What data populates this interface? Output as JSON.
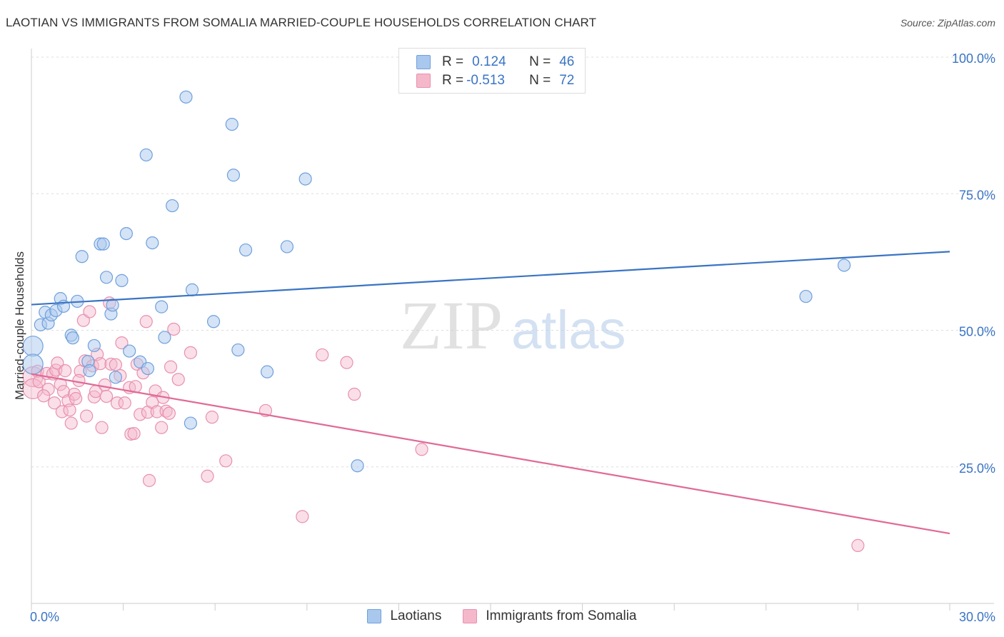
{
  "title": "LAOTIAN VS IMMIGRANTS FROM SOMALIA MARRIED-COUPLE HOUSEHOLDS CORRELATION CHART",
  "source": "Source: ZipAtlas.com",
  "watermark": {
    "zip": "ZIP",
    "atlas": "atlas"
  },
  "legend": {
    "row1": {
      "r_label": "R =",
      "r_value": "0.124",
      "n_label": "N =",
      "n_value": "46"
    },
    "row2": {
      "r_label": "R =",
      "r_value": "-0.513",
      "n_label": "N =",
      "n_value": "72"
    }
  },
  "colors": {
    "blue_fill": "#a9c8ee",
    "blue_stroke": "#6fa0dc",
    "blue_line": "#3a74c4",
    "pink_fill": "#f5b8cb",
    "pink_stroke": "#e890ae",
    "pink_line": "#e06a96",
    "axis_text": "#3a74c4",
    "grid": "#dddddd"
  },
  "chart_data": {
    "type": "scatter",
    "title": "LAOTIAN VS IMMIGRANTS FROM SOMALIA MARRIED-COUPLE HOUSEHOLDS CORRELATION CHART",
    "xlabel": "",
    "ylabel": "Married-couple Households",
    "xlim": [
      0,
      30
    ],
    "ylim": [
      0,
      105
    ],
    "x_tick_labels": [
      "0.0%",
      "30.0%"
    ],
    "y_ticks": [
      25,
      50,
      75,
      100
    ],
    "y_tick_labels": [
      "25.0%",
      "50.0%",
      "75.0%",
      "100.0%"
    ],
    "grid": true,
    "series": [
      {
        "name": "Laotians",
        "r": 0.124,
        "n": 46,
        "trend": {
          "x0": 0,
          "y0": 54.7,
          "x1": 30,
          "y1": 64.4
        },
        "points": [
          [
            0.05,
            47.1,
            "big"
          ],
          [
            0.05,
            43.8,
            "big"
          ],
          [
            0.3,
            51.0
          ],
          [
            0.45,
            53.3
          ],
          [
            0.55,
            51.3
          ],
          [
            0.65,
            52.8
          ],
          [
            0.8,
            53.6
          ],
          [
            0.95,
            55.8
          ],
          [
            1.05,
            54.4
          ],
          [
            1.3,
            49.1
          ],
          [
            1.35,
            48.6
          ],
          [
            1.5,
            55.3
          ],
          [
            1.65,
            63.5
          ],
          [
            1.85,
            44.3
          ],
          [
            1.9,
            42.6
          ],
          [
            2.05,
            47.2
          ],
          [
            2.25,
            65.8
          ],
          [
            2.35,
            65.8
          ],
          [
            2.45,
            59.7
          ],
          [
            2.6,
            53.0
          ],
          [
            2.65,
            54.6
          ],
          [
            2.75,
            41.4
          ],
          [
            2.95,
            59.1
          ],
          [
            3.1,
            67.7
          ],
          [
            3.2,
            46.2
          ],
          [
            3.55,
            44.2
          ],
          [
            3.75,
            82.1
          ],
          [
            3.8,
            43.0
          ],
          [
            3.95,
            66.0
          ],
          [
            4.25,
            54.3
          ],
          [
            4.35,
            48.7
          ],
          [
            4.6,
            72.8
          ],
          [
            5.05,
            92.7
          ],
          [
            5.2,
            33.0
          ],
          [
            5.25,
            57.4
          ],
          [
            5.95,
            51.6
          ],
          [
            6.55,
            87.7
          ],
          [
            6.6,
            78.4
          ],
          [
            6.75,
            46.4
          ],
          [
            7.0,
            64.7
          ],
          [
            7.7,
            42.4
          ],
          [
            8.35,
            65.3
          ],
          [
            8.95,
            77.7
          ],
          [
            10.65,
            25.2
          ],
          [
            25.3,
            56.2
          ],
          [
            26.55,
            61.9
          ]
        ]
      },
      {
        "name": "Immigrants from Somalia",
        "r": -0.513,
        "n": 72,
        "trend": {
          "x0": 0,
          "y0": 42.0,
          "x1": 30,
          "y1": 12.8
        },
        "points": [
          [
            0.05,
            41.5,
            "big"
          ],
          [
            0.05,
            39.3,
            "big"
          ],
          [
            0.2,
            42.5
          ],
          [
            0.25,
            40.6
          ],
          [
            0.5,
            42.1
          ],
          [
            0.55,
            39.2
          ],
          [
            0.7,
            42.0
          ],
          [
            0.75,
            36.7
          ],
          [
            0.8,
            42.7
          ],
          [
            0.85,
            44.0
          ],
          [
            0.95,
            40.1
          ],
          [
            1.0,
            35.1
          ],
          [
            1.05,
            38.8
          ],
          [
            1.1,
            42.6
          ],
          [
            1.2,
            37.1
          ],
          [
            1.25,
            35.4
          ],
          [
            1.3,
            33.0
          ],
          [
            1.4,
            38.3
          ],
          [
            1.45,
            37.5
          ],
          [
            1.6,
            42.5
          ],
          [
            1.7,
            51.8
          ],
          [
            1.75,
            44.4
          ],
          [
            1.8,
            34.3
          ],
          [
            1.9,
            53.4
          ],
          [
            2.0,
            43.5
          ],
          [
            2.05,
            37.8
          ],
          [
            2.1,
            38.8
          ],
          [
            2.15,
            45.6
          ],
          [
            2.25,
            43.9
          ],
          [
            2.3,
            32.2
          ],
          [
            2.4,
            40.0
          ],
          [
            2.45,
            37.9
          ],
          [
            2.55,
            55.0
          ],
          [
            2.6,
            43.8
          ],
          [
            2.75,
            43.7
          ],
          [
            2.8,
            36.7
          ],
          [
            2.9,
            41.7
          ],
          [
            2.95,
            47.7
          ],
          [
            3.05,
            36.7
          ],
          [
            3.2,
            39.5
          ],
          [
            3.25,
            31.0
          ],
          [
            3.35,
            31.1
          ],
          [
            3.4,
            39.7
          ],
          [
            3.45,
            43.8
          ],
          [
            3.55,
            34.6
          ],
          [
            3.65,
            42.2
          ],
          [
            3.75,
            51.6
          ],
          [
            3.8,
            35.0
          ],
          [
            3.85,
            22.5
          ],
          [
            3.95,
            36.8
          ],
          [
            4.05,
            38.9
          ],
          [
            4.1,
            35.1
          ],
          [
            4.25,
            32.2
          ],
          [
            4.3,
            37.7
          ],
          [
            4.4,
            35.2
          ],
          [
            4.5,
            34.8
          ],
          [
            4.55,
            43.3
          ],
          [
            4.65,
            50.2
          ],
          [
            4.8,
            41.0
          ],
          [
            5.2,
            45.9
          ],
          [
            5.75,
            23.3
          ],
          [
            5.9,
            34.1
          ],
          [
            6.35,
            26.1
          ],
          [
            7.65,
            35.3
          ],
          [
            8.85,
            15.9
          ],
          [
            9.5,
            45.5
          ],
          [
            10.3,
            44.1
          ],
          [
            10.55,
            38.3
          ],
          [
            12.75,
            28.2
          ],
          [
            27.0,
            10.6
          ],
          [
            0.4,
            38.0
          ],
          [
            1.55,
            40.8
          ]
        ]
      }
    ]
  }
}
